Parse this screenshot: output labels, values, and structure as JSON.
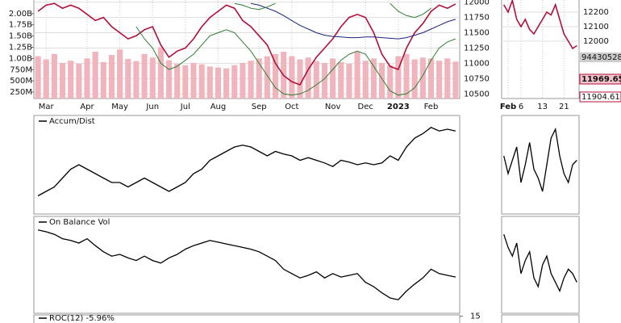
{
  "chart_data": [
    {
      "type": "price",
      "categories": [
        null,
        "Mar",
        null,
        null,
        null,
        null,
        "Apr",
        null,
        null,
        null,
        "May",
        null,
        null,
        null,
        "Jun",
        null,
        null,
        null,
        "Jul",
        null,
        null,
        null,
        "Aug",
        null,
        null,
        null,
        null,
        "Sep",
        null,
        null,
        null,
        "Oct",
        null,
        null,
        null,
        null,
        "Nov",
        null,
        null,
        null,
        "Dec",
        null,
        null,
        null,
        "2023",
        null,
        null,
        null,
        "Feb",
        null,
        null,
        null
      ],
      "series": [
        {
          "color": "#b0103a",
          "values": [
            11850,
            11950,
            11980,
            11900,
            11950,
            11900,
            11800,
            11700,
            11750,
            11600,
            11500,
            11400,
            11450,
            11550,
            11600,
            11300,
            11100,
            11200,
            11250,
            11400,
            11600,
            11750,
            11850,
            11950,
            11900,
            11700,
            11600,
            11450,
            11300,
            11000,
            10800,
            10700,
            10650,
            10900,
            11100,
            11250,
            11400,
            11600,
            11750,
            11800,
            11750,
            11500,
            11150,
            10950,
            10900,
            11250,
            11500,
            11650,
            11850,
            11950,
            11900,
            11970
          ]
        },
        {
          "color": "#1a237e",
          "values": [
            null,
            null,
            null,
            null,
            null,
            null,
            null,
            null,
            null,
            null,
            null,
            null,
            null,
            null,
            null,
            null,
            null,
            null,
            null,
            null,
            null,
            null,
            null,
            null,
            null,
            null,
            11980,
            11950,
            11900,
            11850,
            11780,
            11700,
            11620,
            11560,
            11500,
            11460,
            11440,
            11430,
            11420,
            11420,
            11430,
            11430,
            11420,
            11410,
            11400,
            11420,
            11460,
            11500,
            11560,
            11620,
            11680,
            11720
          ]
        },
        {
          "color": "#2e7d32",
          "values": [
            null,
            null,
            null,
            null,
            null,
            null,
            null,
            null,
            null,
            null,
            null,
            null,
            null,
            null,
            null,
            null,
            null,
            null,
            null,
            null,
            null,
            null,
            null,
            null,
            11980,
            11950,
            11900,
            11880,
            11920,
            11980,
            null,
            null,
            null,
            null,
            null,
            null,
            null,
            null,
            null,
            null,
            null,
            null,
            null,
            11980,
            11850,
            11780,
            11750,
            11800,
            11900,
            null,
            null,
            null
          ]
        },
        {
          "color": "#2e7d32",
          "values": [
            null,
            null,
            null,
            null,
            null,
            null,
            null,
            null,
            null,
            null,
            null,
            null,
            11600,
            11400,
            11250,
            11000,
            10900,
            10950,
            11050,
            11150,
            11300,
            11450,
            11500,
            11550,
            11500,
            11350,
            11200,
            11000,
            10800,
            10600,
            10500,
            10480,
            10500,
            10560,
            10650,
            10750,
            10900,
            11050,
            11150,
            11200,
            11150,
            10950,
            10750,
            10550,
            10480,
            10500,
            10600,
            10800,
            11050,
            11250,
            11350,
            11400
          ]
        }
      ],
      "ylim": [
        10425,
        12035
      ],
      "yticks": [
        10500,
        10750,
        11000,
        11250,
        11500,
        11750,
        12000
      ],
      "grid": true,
      "volume": {
        "color": "#f0b4bd",
        "values": [
          1050000000,
          980000000,
          1100000000,
          900000000,
          950000000,
          880000000,
          1000000000,
          1150000000,
          920000000,
          1080000000,
          1200000000,
          990000000,
          940000000,
          1100000000,
          1020000000,
          1250000000,
          960000000,
          880000000,
          850000000,
          900000000,
          870000000,
          820000000,
          800000000,
          780000000,
          850000000,
          900000000,
          950000000,
          1000000000,
          1050000000,
          1100000000,
          1150000000,
          1050000000,
          980000000,
          1020000000,
          940000000,
          900000000,
          1000000000,
          920000000,
          880000000,
          1150000000,
          950000000,
          1000000000,
          900000000,
          850000000,
          1050000000,
          1100000000,
          980000000,
          1020000000,
          1000000000,
          950000000,
          1000000000,
          930000000
        ],
        "ylim": [
          108000000,
          2302000000
        ],
        "yticks": [
          {
            "value": 250000000,
            "label": "250M"
          },
          {
            "value": 500000000,
            "label": "500M"
          },
          {
            "value": 750000000,
            "label": "750M"
          },
          {
            "value": 1000000000,
            "label": "1.00B"
          },
          {
            "value": 1250000000,
            "label": "1.25B"
          },
          {
            "value": 1500000000,
            "label": "1.50B"
          },
          {
            "value": 1750000000,
            "label": "1.75B"
          },
          {
            "value": 2000000000,
            "label": "2.00B"
          }
        ]
      }
    },
    {
      "type": "line",
      "title": "Accum/Dist",
      "values": [
        15,
        20,
        25,
        35,
        45,
        50,
        45,
        40,
        35,
        30,
        30,
        25,
        30,
        35,
        30,
        25,
        20,
        25,
        30,
        40,
        45,
        55,
        60,
        65,
        70,
        72,
        70,
        65,
        60,
        65,
        62,
        60,
        55,
        58,
        55,
        52,
        48,
        55,
        53,
        50,
        52,
        50,
        52,
        60,
        55,
        70,
        80,
        85,
        92,
        88,
        90,
        88
      ],
      "detail_values": [
        60,
        40,
        55,
        70,
        30,
        50,
        75,
        45,
        35,
        20,
        50,
        80,
        90,
        60,
        40,
        30,
        50,
        55
      ],
      "ylim": [
        0,
        100
      ]
    },
    {
      "type": "line",
      "title": "On Balance Vol",
      "values": [
        90,
        88,
        85,
        80,
        78,
        75,
        80,
        72,
        65,
        60,
        62,
        58,
        55,
        60,
        55,
        52,
        58,
        62,
        68,
        72,
        75,
        78,
        76,
        74,
        72,
        70,
        68,
        65,
        60,
        55,
        45,
        40,
        35,
        38,
        42,
        35,
        40,
        36,
        38,
        40,
        30,
        25,
        18,
        12,
        10,
        20,
        28,
        35,
        45,
        40,
        38,
        36
      ],
      "detail_values": [
        85,
        70,
        60,
        75,
        40,
        55,
        65,
        35,
        25,
        50,
        60,
        40,
        30,
        20,
        35,
        45,
        40,
        30
      ],
      "ylim": [
        0,
        100
      ]
    },
    {
      "type": "panel",
      "title": "ROC(12) -5.96%",
      "ylim": [
        -20,
        16
      ],
      "yticks": [
        15
      ]
    },
    {
      "type": "price-mini",
      "categories": [
        null,
        "Feb",
        null,
        null,
        "6",
        null,
        null,
        null,
        null,
        "13",
        null,
        null,
        null,
        null,
        "21",
        null,
        null,
        null
      ],
      "values": [
        12250,
        12200,
        12280,
        12150,
        12100,
        12150,
        12080,
        12050,
        12100,
        12150,
        12200,
        12180,
        12250,
        12150,
        12050,
        12000,
        11950,
        11969.65
      ],
      "color": "#b0103a",
      "ylim": [
        11606,
        12283
      ],
      "yticks": [
        12000,
        12100,
        12200
      ],
      "last_volume": 94430528,
      "last_close": 11969.65,
      "last_average": 11904.61
    }
  ]
}
